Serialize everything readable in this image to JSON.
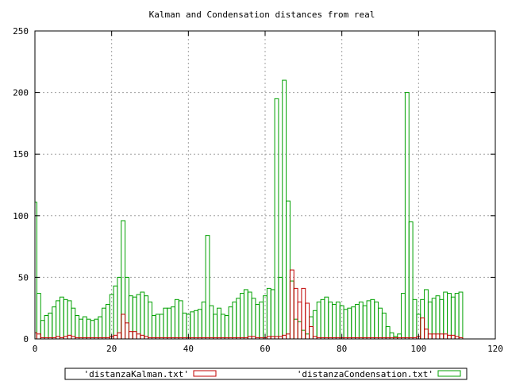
{
  "chart_data": {
    "type": "bar",
    "title": "Kalman and Condensation distances from real",
    "xlabel": "",
    "ylabel": "",
    "xlim": [
      0,
      120
    ],
    "ylim": [
      0,
      250
    ],
    "xticks": [
      "0",
      "20",
      "40",
      "60",
      "80",
      "100",
      "120"
    ],
    "yticks": [
      "0",
      "50",
      "100",
      "150",
      "200",
      "250"
    ],
    "grid": true,
    "legend_position": "bottom",
    "x": [
      0,
      1,
      2,
      3,
      4,
      5,
      6,
      7,
      8,
      9,
      10,
      11,
      12,
      13,
      14,
      15,
      16,
      17,
      18,
      19,
      20,
      21,
      22,
      23,
      24,
      25,
      26,
      27,
      28,
      29,
      30,
      31,
      32,
      33,
      34,
      35,
      36,
      37,
      38,
      39,
      40,
      41,
      42,
      43,
      44,
      45,
      46,
      47,
      48,
      49,
      50,
      51,
      52,
      53,
      54,
      55,
      56,
      57,
      58,
      59,
      60,
      61,
      62,
      63,
      64,
      65,
      66,
      67,
      68,
      69,
      70,
      71,
      72,
      73,
      74,
      75,
      76,
      77,
      78,
      79,
      80,
      81,
      82,
      83,
      84,
      85,
      86,
      87,
      88,
      89,
      90,
      91,
      92,
      93,
      94,
      95,
      96,
      97,
      98,
      99,
      100,
      101,
      102,
      103,
      104,
      105,
      106,
      107,
      108,
      109,
      110,
      111
    ],
    "series": [
      {
        "name": "'distanzaKalman.txt'",
        "color": "#c00000",
        "values": [
          5,
          4,
          1,
          1,
          1,
          1,
          2,
          1,
          2,
          3,
          2,
          1,
          1,
          1,
          1,
          1,
          1,
          1,
          1,
          1,
          2,
          3,
          5,
          20,
          13,
          6,
          6,
          4,
          3,
          2,
          1,
          1,
          1,
          1,
          1,
          1,
          1,
          1,
          1,
          1,
          1,
          1,
          1,
          1,
          1,
          1,
          1,
          1,
          1,
          1,
          1,
          1,
          1,
          1,
          1,
          1,
          2,
          2,
          1,
          1,
          1,
          2,
          2,
          2,
          2,
          3,
          4,
          56,
          41,
          30,
          41,
          29,
          10,
          2,
          1,
          1,
          1,
          1,
          1,
          1,
          1,
          1,
          1,
          1,
          1,
          1,
          1,
          1,
          1,
          1,
          1,
          1,
          1,
          1,
          1,
          1,
          1,
          1,
          1,
          1,
          2,
          17,
          8,
          4,
          4,
          4,
          4,
          4,
          3,
          3,
          2,
          1
        ]
      },
      {
        "name": "'distanzaCondensation.txt'",
        "color": "#00a000",
        "values": [
          111,
          37,
          15,
          19,
          21,
          26,
          31,
          34,
          32,
          31,
          25,
          19,
          16,
          18,
          16,
          15,
          16,
          18,
          25,
          28,
          36,
          43,
          50,
          96,
          50,
          35,
          34,
          36,
          38,
          35,
          30,
          19,
          20,
          20,
          25,
          25,
          26,
          32,
          31,
          21,
          20,
          22,
          23,
          24,
          30,
          84,
          27,
          20,
          25,
          20,
          19,
          26,
          30,
          33,
          37,
          40,
          38,
          33,
          28,
          30,
          35,
          41,
          40,
          195,
          50,
          210,
          112,
          47,
          16,
          14,
          7,
          4,
          18,
          23,
          30,
          32,
          34,
          30,
          28,
          30,
          27,
          24,
          25,
          26,
          28,
          30,
          27,
          31,
          32,
          30,
          25,
          21,
          10,
          5,
          2,
          4,
          37,
          200,
          95,
          32,
          20,
          32,
          40,
          30,
          33,
          35,
          32,
          38,
          37,
          34,
          37,
          38
        ]
      }
    ]
  }
}
